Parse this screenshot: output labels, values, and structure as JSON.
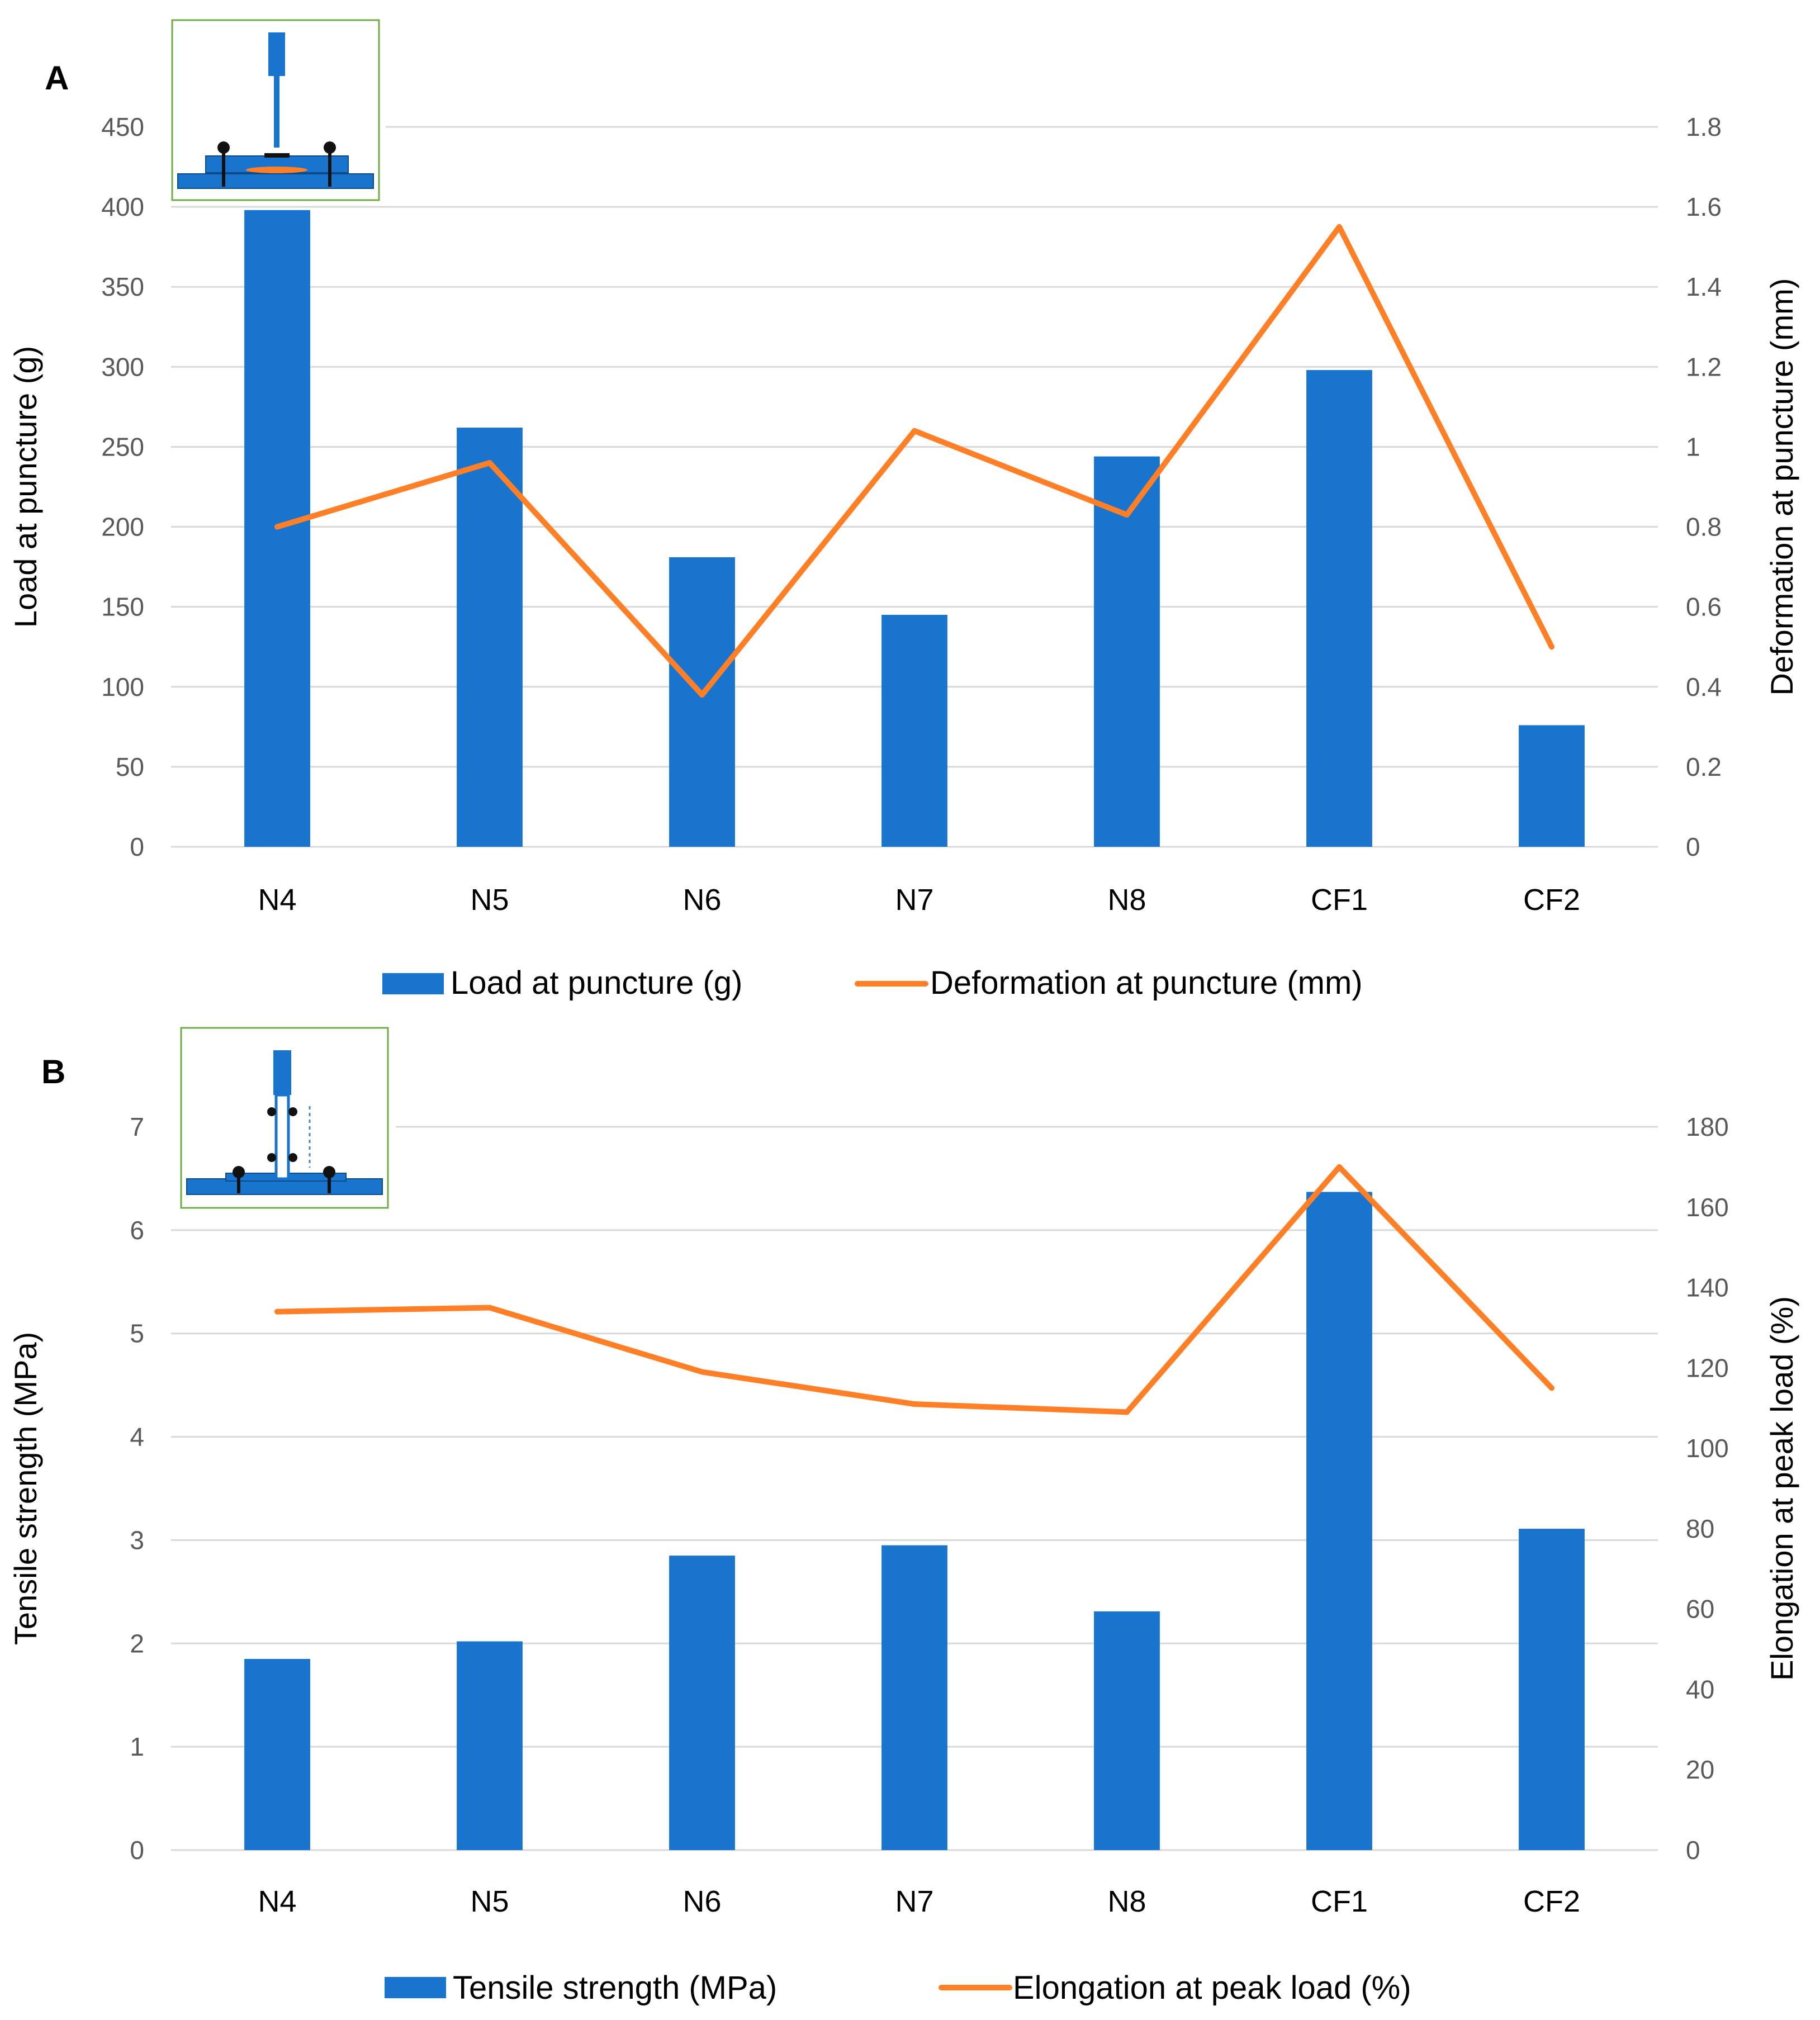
{
  "colors": {
    "bar": "#1874CD",
    "line": "#FF7F27",
    "grid": "#D9D9D9",
    "text": "#595959",
    "label": "#000000",
    "inset_border": "#70AD47",
    "device": "#1874CD"
  },
  "chart_data": [
    {
      "panel_label": "A",
      "type": "bar",
      "categories": [
        "N4",
        "N5",
        "N6",
        "N7",
        "N8",
        "CF1",
        "CF2"
      ],
      "series": [
        {
          "name": "Load at puncture (g)",
          "type": "bar",
          "axis": "left",
          "values": [
            398,
            262,
            181,
            145,
            244,
            298,
            76
          ]
        },
        {
          "name": "Deformation at puncture (mm)",
          "type": "line",
          "axis": "right",
          "values": [
            0.8,
            0.96,
            0.38,
            1.04,
            0.83,
            1.55,
            0.5
          ]
        }
      ],
      "ylabel": "Load at puncture (g)",
      "y2label": "Deformation at puncture (mm)",
      "ylim": [
        0,
        450
      ],
      "y2lim": [
        0,
        1.8
      ],
      "yticks": [
        "0",
        "50",
        "100",
        "150",
        "200",
        "250",
        "300",
        "350",
        "400",
        "450"
      ],
      "y2ticks": [
        "0",
        "0.2",
        "0.4",
        "0.6",
        "0.8",
        "1",
        "1.2",
        "1.4",
        "1.6",
        "1.8"
      ],
      "grid": true,
      "legend_position": "bottom",
      "inset_icon": "puncture-test-icon"
    },
    {
      "panel_label": "B",
      "type": "bar",
      "categories": [
        "N4",
        "N5",
        "N6",
        "N7",
        "N8",
        "CF1",
        "CF2"
      ],
      "series": [
        {
          "name": "Tensile strength (MPa)",
          "type": "bar",
          "axis": "left",
          "values": [
            1.85,
            2.02,
            2.85,
            2.95,
            2.31,
            6.37,
            3.11
          ]
        },
        {
          "name": "Elongation at peak load (%)",
          "type": "line",
          "axis": "right",
          "values": [
            134,
            135,
            119,
            111,
            109,
            170,
            115
          ]
        }
      ],
      "ylabel": "Tensile strength (MPa)",
      "y2label": "Elongation at peak load (%)",
      "ylim": [
        0,
        7
      ],
      "y2lim": [
        0,
        180
      ],
      "yticks": [
        "0",
        "1",
        "2",
        "3",
        "4",
        "5",
        "6",
        "7"
      ],
      "y2ticks": [
        "0",
        "20",
        "40",
        "60",
        "80",
        "100",
        "120",
        "140",
        "160",
        "180"
      ],
      "grid": true,
      "legend_position": "bottom",
      "inset_icon": "tensile-test-icon"
    }
  ]
}
